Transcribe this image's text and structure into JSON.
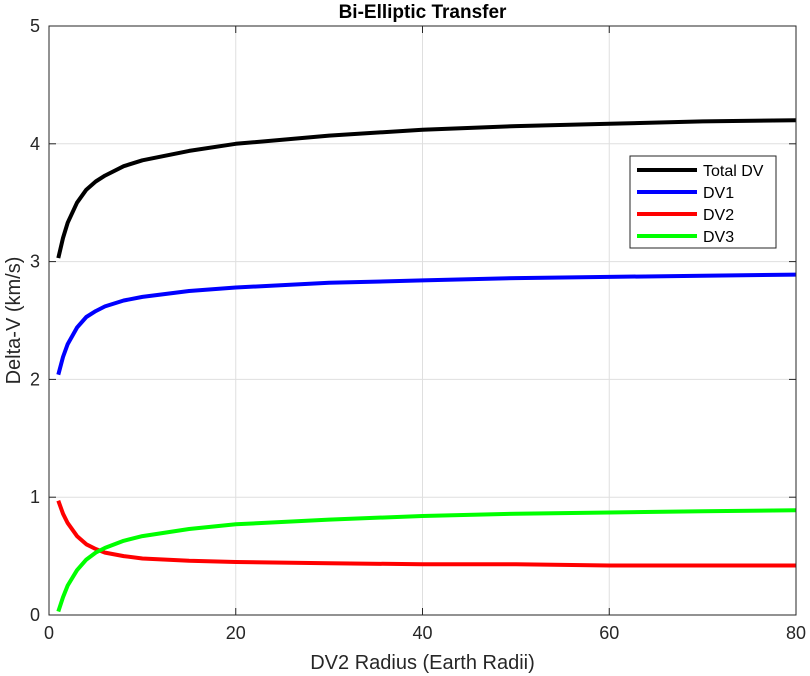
{
  "chart_data": {
    "type": "line",
    "title": "Bi-Elliptic Transfer",
    "xlabel": "DV2 Radius (Earth Radii)",
    "ylabel": "Delta-V (km/s)",
    "xlim": [
      0,
      80
    ],
    "ylim": [
      0,
      5
    ],
    "xticks": [
      0,
      20,
      40,
      60,
      80
    ],
    "yticks": [
      0,
      1,
      2,
      3,
      4,
      5
    ],
    "grid": true,
    "legend_position": "top-right",
    "x": [
      1,
      1.5,
      2,
      3,
      4,
      5,
      6,
      8,
      10,
      15,
      20,
      30,
      40,
      50,
      60,
      70,
      80
    ],
    "series": [
      {
        "name": "Total DV",
        "color": "#000000",
        "values": [
          3.03,
          3.2,
          3.33,
          3.5,
          3.61,
          3.68,
          3.73,
          3.81,
          3.86,
          3.94,
          4.0,
          4.07,
          4.12,
          4.15,
          4.17,
          4.19,
          4.2
        ]
      },
      {
        "name": "DV1",
        "color": "#0000ff",
        "values": [
          2.04,
          2.19,
          2.3,
          2.44,
          2.53,
          2.58,
          2.62,
          2.67,
          2.7,
          2.75,
          2.78,
          2.82,
          2.84,
          2.86,
          2.87,
          2.88,
          2.89
        ]
      },
      {
        "name": "DV2",
        "color": "#ff0000",
        "values": [
          0.97,
          0.86,
          0.78,
          0.67,
          0.6,
          0.56,
          0.53,
          0.5,
          0.48,
          0.46,
          0.45,
          0.44,
          0.43,
          0.43,
          0.42,
          0.42,
          0.42
        ]
      },
      {
        "name": "DV3",
        "color": "#00ff00",
        "values": [
          0.03,
          0.15,
          0.25,
          0.38,
          0.47,
          0.53,
          0.57,
          0.63,
          0.67,
          0.73,
          0.77,
          0.81,
          0.84,
          0.86,
          0.87,
          0.88,
          0.89
        ]
      }
    ]
  }
}
